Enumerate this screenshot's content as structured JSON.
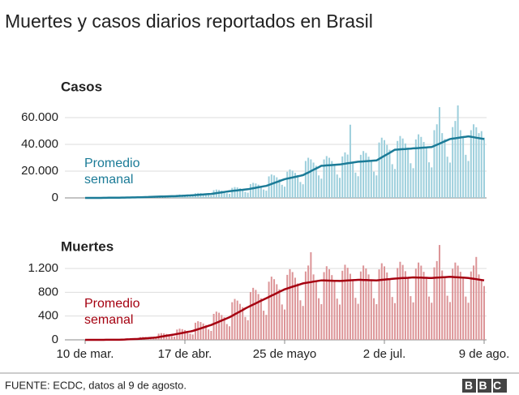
{
  "title": "Muertes y casos diarios reportados en Brasil",
  "source": "FUENTE: ECDC, datos al 9 de agosto.",
  "logo": "BBC",
  "chart_data": [
    {
      "type": "bar",
      "subtitle": "Casos",
      "color": "#9dcfdc",
      "ylim": [
        0,
        70000
      ],
      "yticks": [
        0,
        {
          "value": 20000,
          "label": "20.000"
        },
        {
          "value": 40000,
          "label": "40.000"
        },
        {
          "value": 60000,
          "label": "60.000"
        }
      ],
      "grid": true,
      "values": [
        20,
        25,
        30,
        35,
        40,
        30,
        30,
        150,
        200,
        250,
        280,
        300,
        150,
        120,
        460,
        500,
        480,
        440,
        400,
        280,
        240,
        1035,
        1125,
        1080,
        990,
        900,
        630,
        540,
        1500,
        1620,
        1560,
        1430,
        1300,
        910,
        780,
        2300,
        2500,
        2400,
        2200,
        2000,
        1400,
        1200,
        3450,
        3750,
        3600,
        3300,
        3000,
        2100,
        1800,
        5750,
        6250,
        6000,
        5500,
        5000,
        3500,
        3000,
        7500,
        8100,
        7800,
        7150,
        6500,
        4550,
        3900,
        10350,
        11250,
        10800,
        9900,
        9000,
        6300,
        5400,
        16100,
        17500,
        16800,
        15400,
        14000,
        9800,
        8400,
        19550,
        21250,
        20400,
        18700,
        17000,
        11900,
        10200,
        27600,
        30000,
        28800,
        26400,
        24000,
        16800,
        14400,
        28750,
        31250,
        30000,
        27500,
        25000,
        17500,
        15000,
        31000,
        34000,
        32400,
        54700,
        27000,
        18900,
        16200,
        32200,
        35000,
        33600,
        30800,
        28000,
        19600,
        16800,
        41400,
        45000,
        43200,
        39600,
        36000,
        25200,
        21600,
        42550,
        46250,
        44400,
        40700,
        37000,
        25900,
        22200,
        43700,
        47500,
        45600,
        41800,
        38000,
        26600,
        22800,
        50600,
        55000,
        67800,
        48400,
        44000,
        30800,
        26400,
        52900,
        57500,
        69100,
        50600,
        46000,
        32200,
        27600,
        50600,
        55000,
        52800,
        48400,
        49900,
        45000
      ],
      "average": {
        "name": "Promedio semanal",
        "color": "#1b7b97",
        "values": [
          10,
          12,
          15,
          18,
          22,
          26,
          30,
          50,
          75,
          100,
          130,
          160,
          190,
          200,
          230,
          260,
          290,
          320,
          350,
          380,
          400,
          470,
          540,
          610,
          690,
          760,
          830,
          900,
          960,
          1010,
          1070,
          1130,
          1190,
          1250,
          1300,
          1400,
          1500,
          1600,
          1700,
          1800,
          1900,
          2000,
          2140,
          2290,
          2430,
          2570,
          2710,
          2860,
          3000,
          3290,
          3570,
          3860,
          4140,
          4430,
          4710,
          5000,
          5210,
          5430,
          5640,
          5860,
          6070,
          6290,
          6500,
          6860,
          7210,
          7570,
          7930,
          8290,
          8640,
          9000,
          9710,
          10430,
          11140,
          11860,
          12570,
          13290,
          14000,
          14430,
          14860,
          15290,
          15710,
          16140,
          16570,
          17000,
          18000,
          19000,
          20000,
          21000,
          22000,
          23000,
          24000,
          24140,
          24290,
          24430,
          24570,
          24710,
          24860,
          25000,
          25290,
          25570,
          25860,
          26140,
          26430,
          26710,
          27000,
          27140,
          27290,
          27430,
          27570,
          27710,
          27860,
          28000,
          29140,
          30290,
          31430,
          32570,
          33710,
          34860,
          36000,
          36140,
          36290,
          36430,
          36570,
          36710,
          36860,
          37000,
          37140,
          37290,
          37430,
          37570,
          37710,
          37860,
          38000,
          38860,
          39710,
          40570,
          41430,
          42290,
          43140,
          44000,
          44290,
          44570,
          44860,
          45140,
          45430,
          45710,
          46000,
          45670,
          45330,
          45000,
          44670,
          44330,
          44000
        ]
      }
    },
    {
      "type": "bar",
      "subtitle": "Muertes",
      "color": "#dc9497",
      "ylim": [
        0,
        1600
      ],
      "yticks": [
        0,
        400,
        800,
        {
          "value": 1200,
          "label": "1.200"
        }
      ],
      "grid": true,
      "categories": [
        "10 de mar.",
        null,
        null,
        null,
        null,
        null,
        null,
        null,
        null,
        null,
        null,
        null,
        null,
        null,
        null,
        null,
        null,
        null,
        null,
        null,
        null,
        null,
        null,
        null,
        null,
        null,
        null,
        null,
        null,
        null,
        null,
        null,
        null,
        null,
        null,
        null,
        null,
        null,
        "17 de abr.",
        null,
        null,
        null,
        null,
        null,
        null,
        null,
        null,
        null,
        null,
        null,
        null,
        null,
        null,
        null,
        null,
        null,
        null,
        null,
        null,
        null,
        null,
        null,
        null,
        null,
        null,
        null,
        null,
        null,
        null,
        null,
        null,
        null,
        null,
        null,
        null,
        null,
        "25 de mayo",
        null,
        null,
        null,
        null,
        null,
        null,
        null,
        null,
        null,
        null,
        null,
        null,
        null,
        null,
        null,
        null,
        null,
        null,
        null,
        null,
        null,
        null,
        null,
        null,
        null,
        null,
        null,
        null,
        null,
        null,
        null,
        null,
        null,
        null,
        null,
        null,
        null,
        "2 de jul.",
        null,
        null,
        null,
        null,
        null,
        null,
        null,
        null,
        null,
        null,
        null,
        null,
        null,
        null,
        null,
        null,
        null,
        null,
        null,
        null,
        null,
        null,
        null,
        null,
        null,
        null,
        null,
        null,
        null,
        null,
        null,
        null,
        null,
        null,
        null,
        null,
        null,
        "9 de ago."
      ],
      "values": [
        0,
        0,
        0,
        0,
        0,
        0,
        1,
        1,
        1,
        2,
        3,
        3,
        2,
        2,
        17,
        19,
        18,
        17,
        15,
        11,
        9,
        46,
        50,
        48,
        44,
        40,
        28,
        24,
        104,
        113,
        108,
        99,
        90,
        63,
        54,
        173,
        188,
        180,
        165,
        150,
        105,
        90,
        288,
        313,
        300,
        275,
        250,
        175,
        150,
        437,
        475,
        456,
        418,
        380,
        266,
        228,
        633,
        688,
        660,
        605,
        550,
        385,
        330,
        805,
        875,
        840,
        770,
        700,
        490,
        420,
        978,
        1063,
        1020,
        935,
        850,
        595,
        510,
        1093,
        1188,
        1140,
        1045,
        950,
        665,
        570,
        1150,
        1250,
        1473,
        1100,
        1000,
        700,
        600,
        1139,
        1238,
        1188,
        1089,
        990,
        693,
        594,
        1162,
        1263,
        1212,
        1111,
        1010,
        707,
        606,
        1150,
        1250,
        1200,
        1100,
        1000,
        700,
        600,
        1185,
        1288,
        1236,
        1133,
        1030,
        721,
        618,
        1208,
        1313,
        1260,
        1155,
        1050,
        735,
        630,
        1196,
        1300,
        1248,
        1144,
        1040,
        728,
        624,
        1219,
        1325,
        1595,
        1166,
        1060,
        742,
        636,
        1196,
        1300,
        1248,
        1144,
        1040,
        728,
        624,
        1150,
        1250,
        1394,
        1100,
        1000,
        905
      ],
      "average": {
        "name": "Promedio semanal",
        "color": "#a50010",
        "values": [
          0,
          0,
          0,
          0,
          0,
          0,
          0,
          0,
          1,
          1,
          1,
          2,
          2,
          2,
          4,
          6,
          8,
          10,
          12,
          13,
          15,
          19,
          22,
          26,
          29,
          33,
          36,
          40,
          47,
          54,
          61,
          69,
          76,
          83,
          90,
          99,
          107,
          116,
          124,
          133,
          141,
          150,
          164,
          179,
          193,
          207,
          221,
          236,
          250,
          269,
          287,
          306,
          324,
          343,
          361,
          380,
          404,
          429,
          453,
          477,
          501,
          526,
          550,
          571,
          593,
          614,
          636,
          657,
          679,
          700,
          721,
          743,
          764,
          786,
          807,
          829,
          850,
          864,
          879,
          893,
          907,
          921,
          936,
          950,
          957,
          964,
          971,
          979,
          986,
          993,
          1000,
          999,
          997,
          996,
          994,
          993,
          991,
          990,
          993,
          996,
          999,
          1001,
          1004,
          1007,
          1010,
          1009,
          1007,
          1006,
          1004,
          1003,
          1001,
          1000,
          1004,
          1009,
          1013,
          1017,
          1021,
          1026,
          1030,
          1033,
          1036,
          1039,
          1041,
          1044,
          1047,
          1050,
          1049,
          1047,
          1046,
          1044,
          1043,
          1041,
          1040,
          1043,
          1046,
          1049,
          1051,
          1054,
          1057,
          1060,
          1057,
          1054,
          1051,
          1049,
          1046,
          1043,
          1040,
          1033,
          1027,
          1020,
          1013,
          1007,
          1000
        ]
      }
    }
  ]
}
